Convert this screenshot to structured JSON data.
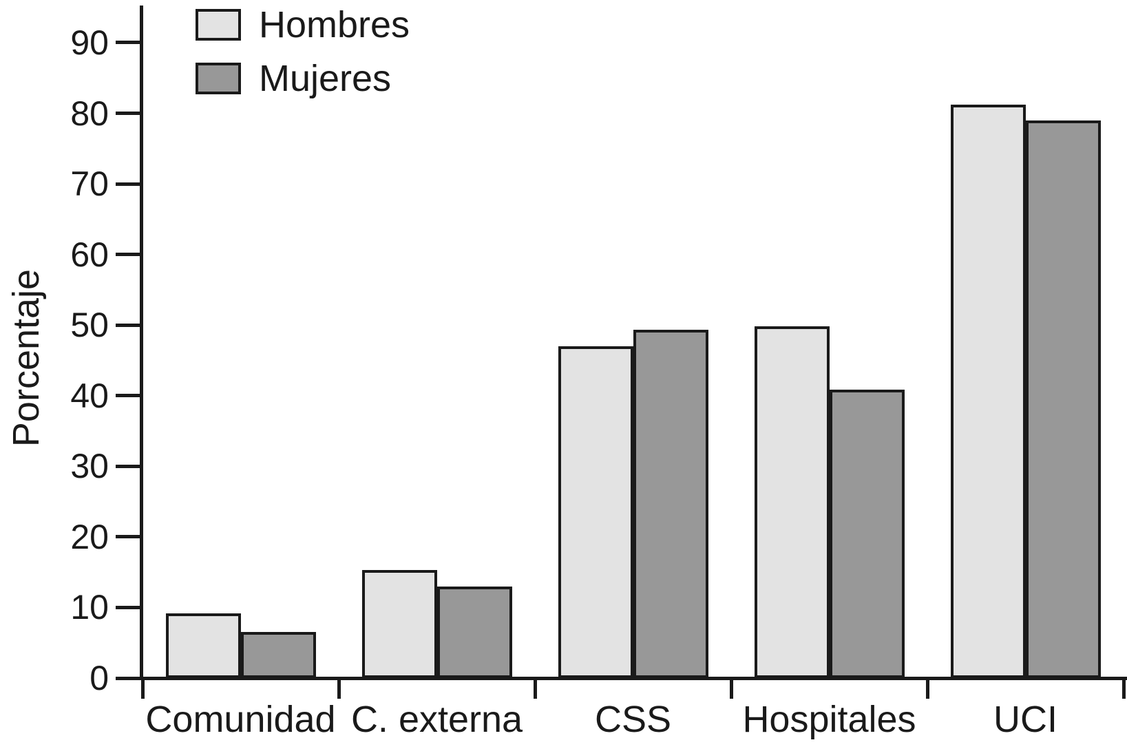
{
  "figure": {
    "background": "#ffffff",
    "text_color": "#1a1a1a",
    "axis_color": "#1a1a1a"
  },
  "chart_data": {
    "type": "bar",
    "title": "",
    "xlabel": "",
    "ylabel": "Porcentaje",
    "categories": [
      "Comunidad",
      "C. externa",
      "CSS",
      "Hospitales",
      "UCI"
    ],
    "series": [
      {
        "name": "Hombres",
        "color": "#e3e3e3",
        "values": [
          9.2,
          15.3,
          47.0,
          49.8,
          81.2
        ]
      },
      {
        "name": "Mujeres",
        "color": "#989898",
        "values": [
          6.5,
          13.0,
          49.3,
          40.9,
          79.0
        ]
      }
    ],
    "ylim": [
      0,
      95
    ],
    "yticks": [
      0,
      10,
      20,
      30,
      40,
      50,
      60,
      70,
      80,
      90
    ],
    "grid": false,
    "legend_position": "top-left",
    "bar_border_color": "#1a1a1a"
  }
}
